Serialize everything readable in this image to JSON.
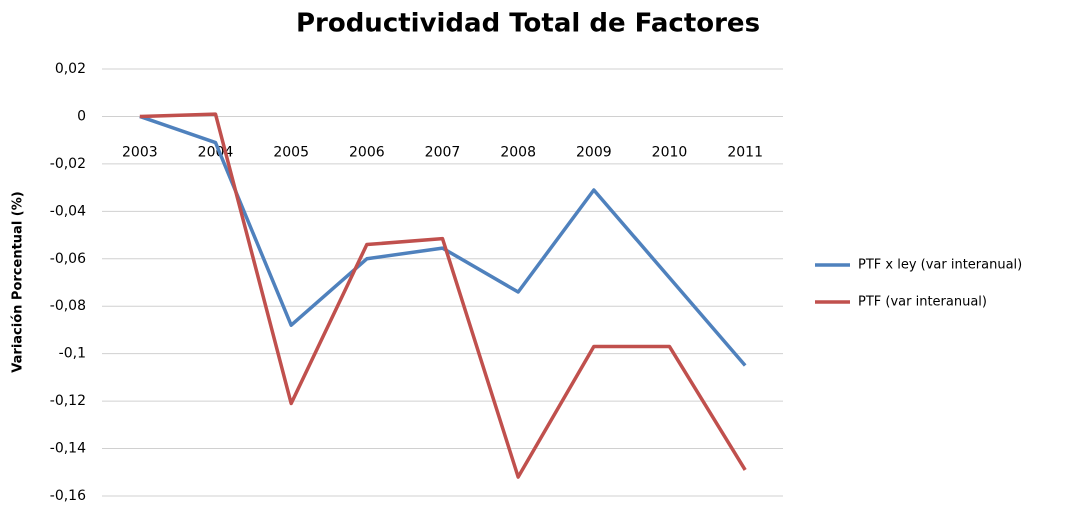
{
  "chart_data": {
    "type": "line",
    "title": "Productividad Total de Factores",
    "y_label": "Variación Porcentual (%)",
    "categories": [
      "2003",
      "2004",
      "2005",
      "2006",
      "2007",
      "2008",
      "2009",
      "2010",
      "2011"
    ],
    "series": [
      {
        "name": "PTF x ley (var interanual)",
        "color": "#4f81bd",
        "values": [
          0,
          -0.011,
          -0.088,
          -0.06,
          -0.0555,
          -0.074,
          -0.031,
          -0.068,
          -0.105
        ]
      },
      {
        "name": "PTF (var interanual)",
        "color": "#c0504d",
        "values": [
          0,
          0.001,
          -0.121,
          -0.054,
          -0.0515,
          -0.152,
          -0.097,
          -0.097,
          -0.149
        ]
      }
    ],
    "ylim": [
      -0.16,
      0.02
    ],
    "yticks": [
      {
        "value": 0.02,
        "label": "0,02"
      },
      0,
      {
        "value": -0.02,
        "label": "-0,02"
      },
      {
        "value": -0.04,
        "label": "-0,04"
      },
      {
        "value": -0.06,
        "label": "-0,06"
      },
      {
        "value": -0.08,
        "label": "-0,08"
      },
      {
        "value": -0.1,
        "label": "-0,1"
      },
      {
        "value": -0.12,
        "label": "-0,12"
      },
      {
        "value": -0.14,
        "label": "-0,14"
      },
      {
        "value": -0.16,
        "label": "-0,16"
      }
    ],
    "grid": true,
    "legend": "right"
  }
}
